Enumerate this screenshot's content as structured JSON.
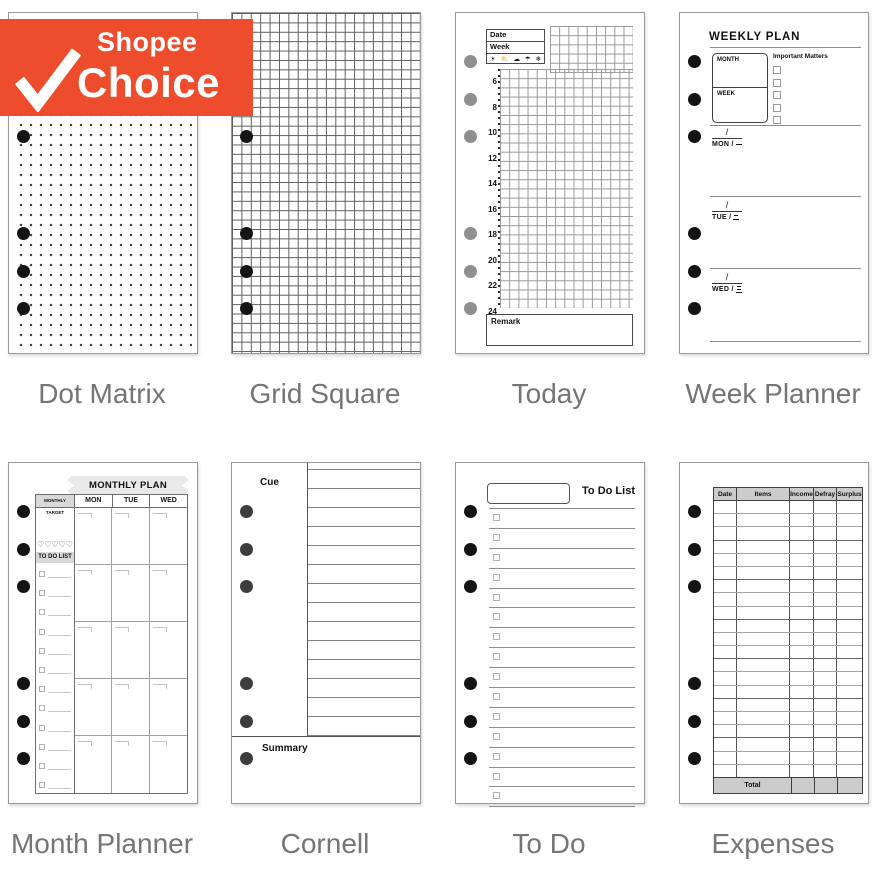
{
  "badge": {
    "brand": "Shopee",
    "product": "Choice",
    "bg_color": "#EE4D2D",
    "text_color": "#FFFFFF"
  },
  "cards": {
    "dot_matrix": {
      "label": "Dot Matrix"
    },
    "grid_square": {
      "label": "Grid Square"
    },
    "today": {
      "label": "Today",
      "date_label": "Date",
      "week_label": "Week",
      "weather_icons": [
        "☀",
        "⛅",
        "☁",
        "☂",
        "❄"
      ],
      "hours": [
        "6",
        "8",
        "10",
        "12",
        "14",
        "16",
        "18",
        "20",
        "22",
        "24"
      ],
      "remark_label": "Remark"
    },
    "week_planner": {
      "label": "Week Planner",
      "title": "WEEKLY PLAN",
      "month_label": "MONTH",
      "week_label": "WEEK",
      "important_matters_label": "Important Matters",
      "date_slash": "/",
      "days": [
        {
          "label": "MON / 一",
          "latin": "MON /",
          "glyph": "one"
        },
        {
          "label": "TUE / 二",
          "latin": "TUE /",
          "glyph": "two"
        },
        {
          "label": "WED / 三",
          "latin": "WED /",
          "glyph": "three"
        }
      ]
    },
    "month_planner": {
      "label": "Month Planner",
      "title": "MONTHLY PLAN",
      "target_label": "MONTHLY TARGET",
      "day_columns": [
        "MON",
        "TUE",
        "WED"
      ],
      "hearts": "♡♡♡♡♡",
      "todo_label": "TO DO LIST"
    },
    "cornell": {
      "label": "Cornell",
      "cue_label": "Cue",
      "summary_label": "Summary"
    },
    "to_do": {
      "label": "To Do",
      "title": "To Do List"
    },
    "expenses": {
      "label": "Expenses",
      "columns": [
        "Date",
        "Items",
        "Income",
        "Defray",
        "Surplus"
      ],
      "total_label": "Total"
    }
  }
}
